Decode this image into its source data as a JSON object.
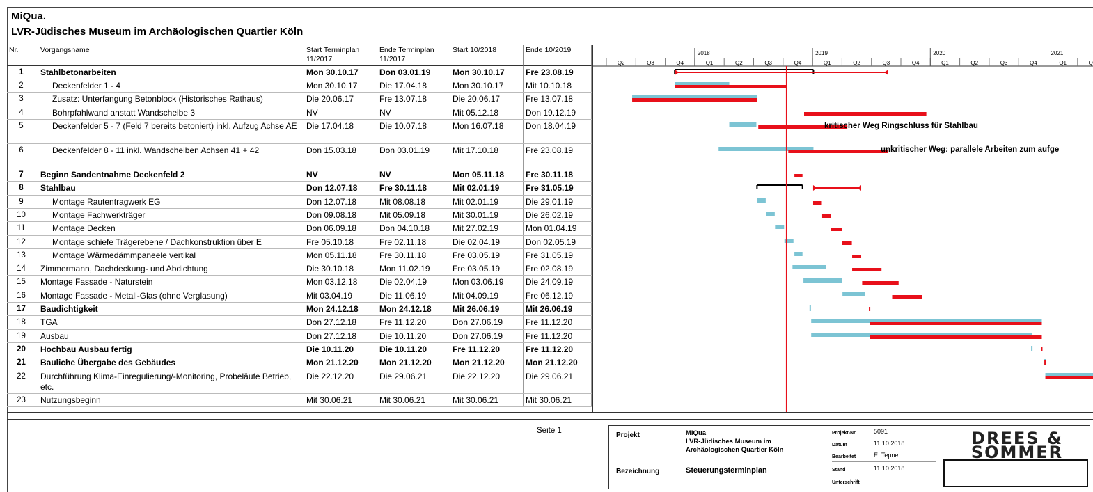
{
  "header": {
    "title": "MiQua.",
    "subtitle": "LVR-Jüdisches Museum im Archäologischen Quartier Köln"
  },
  "columns": {
    "nr": "Nr.",
    "name": "Vorgangsname",
    "start_plan": "Start Terminplan 11/2017",
    "end_plan": "Ende Terminplan 11/2017",
    "start_cur": "Start 10/2018",
    "end_cur": "Ende 10/2019"
  },
  "rows": [
    {
      "nr": "1",
      "name": "Stahlbetonarbeiten",
      "s1": "Mon 30.10.17",
      "e1": "Don 03.01.19",
      "s2": "Mon 30.10.17",
      "e2": "Fre 23.08.19"
    },
    {
      "nr": "2",
      "name": "Deckenfelder 1 - 4",
      "s1": "Mon 30.10.17",
      "e1": "Die 17.04.18",
      "s2": "Mon 30.10.17",
      "e2": "Mit 10.10.18"
    },
    {
      "nr": "3",
      "name": "Zusatz: Unterfangung Betonblock (Historisches Rathaus)",
      "s1": "Die 20.06.17",
      "e1": "Fre 13.07.18",
      "s2": "Die 20.06.17",
      "e2": "Fre 13.07.18"
    },
    {
      "nr": "4",
      "name": "Bohrpfahlwand anstatt Wandscheibe 3",
      "s1": "NV",
      "e1": "NV",
      "s2": "Mit 05.12.18",
      "e2": "Don 19.12.19"
    },
    {
      "nr": "5",
      "name": "Deckenfelder 5 - 7 (Feld 7 bereits betoniert) inkl. Aufzug Achse AE",
      "s1": "Die 17.04.18",
      "e1": "Die 10.07.18",
      "s2": "Mon 16.07.18",
      "e2": "Don 18.04.19"
    },
    {
      "nr": "6",
      "name": "Deckenfelder 8 - 11 inkl. Wandscheiben Achsen 41 + 42",
      "s1": "Don 15.03.18",
      "e1": "Don 03.01.19",
      "s2": "Mit 17.10.18",
      "e2": "Fre 23.08.19"
    },
    {
      "nr": "7",
      "name": "Beginn Sandentnahme Deckenfeld 2",
      "s1": "NV",
      "e1": "NV",
      "s2": "Mon 05.11.18",
      "e2": "Fre 30.11.18"
    },
    {
      "nr": "8",
      "name": "Stahlbau",
      "s1": "Don 12.07.18",
      "e1": "Fre 30.11.18",
      "s2": "Mit 02.01.19",
      "e2": "Fre 31.05.19"
    },
    {
      "nr": "9",
      "name": "Montage Rautentragwerk EG",
      "s1": "Don 12.07.18",
      "e1": "Mit 08.08.18",
      "s2": "Mit 02.01.19",
      "e2": "Die 29.01.19"
    },
    {
      "nr": "10",
      "name": "Montage Fachwerkträger",
      "s1": "Don 09.08.18",
      "e1": "Mit 05.09.18",
      "s2": "Mit 30.01.19",
      "e2": "Die 26.02.19"
    },
    {
      "nr": "11",
      "name": "Montage Decken",
      "s1": "Don 06.09.18",
      "e1": "Don 04.10.18",
      "s2": "Mit 27.02.19",
      "e2": "Mon 01.04.19"
    },
    {
      "nr": "12",
      "name": "Montage schiefe Trägerebene / Dachkonstruktion über E",
      "s1": "Fre 05.10.18",
      "e1": "Fre 02.11.18",
      "s2": "Die 02.04.19",
      "e2": "Don 02.05.19"
    },
    {
      "nr": "13",
      "name": "Montage Wärmedämmpaneele vertikal",
      "s1": "Mon 05.11.18",
      "e1": "Fre 30.11.18",
      "s2": "Fre 03.05.19",
      "e2": "Fre 31.05.19"
    },
    {
      "nr": "14",
      "name": "Zimmermann, Dachdeckung- und Abdichtung",
      "s1": "Die 30.10.18",
      "e1": "Mon 11.02.19",
      "s2": "Fre 03.05.19",
      "e2": "Fre 02.08.19"
    },
    {
      "nr": "15",
      "name": "Montage Fassade - Naturstein",
      "s1": "Mon 03.12.18",
      "e1": "Die 02.04.19",
      "s2": "Mon 03.06.19",
      "e2": "Die 24.09.19"
    },
    {
      "nr": "16",
      "name": "Montage Fassade - Metall-Glas (ohne Verglasung)",
      "s1": "Mit 03.04.19",
      "e1": "Die 11.06.19",
      "s2": "Mit 04.09.19",
      "e2": "Fre 06.12.19"
    },
    {
      "nr": "17",
      "name": "Baudichtigkeit",
      "s1": "Mon 24.12.18",
      "e1": "Mon 24.12.18",
      "s2": "Mit 26.06.19",
      "e2": "Mit 26.06.19"
    },
    {
      "nr": "18",
      "name": "TGA",
      "s1": "Don 27.12.18",
      "e1": "Fre 11.12.20",
      "s2": "Don 27.06.19",
      "e2": "Fre 11.12.20"
    },
    {
      "nr": "19",
      "name": "Ausbau",
      "s1": "Don 27.12.18",
      "e1": "Die 10.11.20",
      "s2": "Don 27.06.19",
      "e2": "Fre 11.12.20"
    },
    {
      "nr": "20",
      "name": "Hochbau Ausbau fertig",
      "s1": "Die 10.11.20",
      "e1": "Die 10.11.20",
      "s2": "Fre 11.12.20",
      "e2": "Fre 11.12.20"
    },
    {
      "nr": "21",
      "name": "Bauliche Übergabe des Gebäudes",
      "s1": "Mon 21.12.20",
      "e1": "Mon 21.12.20",
      "s2": "Mon 21.12.20",
      "e2": "Mon 21.12.20"
    },
    {
      "nr": "22",
      "name": "Durchführung Klima-Einregulierung/-Monitoring, Probeläufe Betrieb, etc.",
      "s1": "Die 22.12.20",
      "e1": "Die 29.06.21",
      "s2": "Die 22.12.20",
      "e2": "Die 29.06.21"
    },
    {
      "nr": "23",
      "name": "Nutzungsbeginn",
      "s1": "Mit 30.06.21",
      "e1": "Mit 30.06.21",
      "s2": "Mit 30.06.21",
      "e2": "Mit 30.06.21"
    }
  ],
  "timeline": {
    "years": [
      "2018",
      "2019",
      "2020",
      "2021"
    ],
    "quarters": [
      "Q2",
      "Q3",
      "Q4",
      "Q1",
      "Q2",
      "Q3",
      "Q4",
      "Q1",
      "Q2",
      "Q3",
      "Q4",
      "Q1",
      "Q2",
      "Q3",
      "Q4",
      "Q1",
      "Q2"
    ],
    "annotations": [
      "kritischer Weg Ringschluss für Stahlbau",
      "unkritischer Weg: parallele Arbeiten zum aufge"
    ],
    "colors": {
      "plan": "#7cc4d4",
      "current": "#e8101a",
      "today": "#e8101a",
      "summary": "#000000"
    }
  },
  "footer": {
    "page": "Seite 1",
    "projekt_label": "Projekt",
    "projekt_value": [
      "MiQua",
      "LVR-Jüdisches Museum im",
      "Archäologischen Quartier Köln"
    ],
    "bezeichnung_label": "Bezeichnung",
    "bezeichnung_value": "Steuerungsterminplan",
    "projekt_nr_label": "Projekt-Nr.",
    "projekt_nr": "5091",
    "datum_label": "Datum",
    "datum": "11.10.2018",
    "bearbeitet_label": "Bearbeitet",
    "bearbeitet": "E. Tepner",
    "stand_label": "Stand",
    "stand": "11.10.2018",
    "unterschrift_label": "Unterschrift",
    "logo_line1": "DREES &",
    "logo_line2": "SOMMER"
  }
}
